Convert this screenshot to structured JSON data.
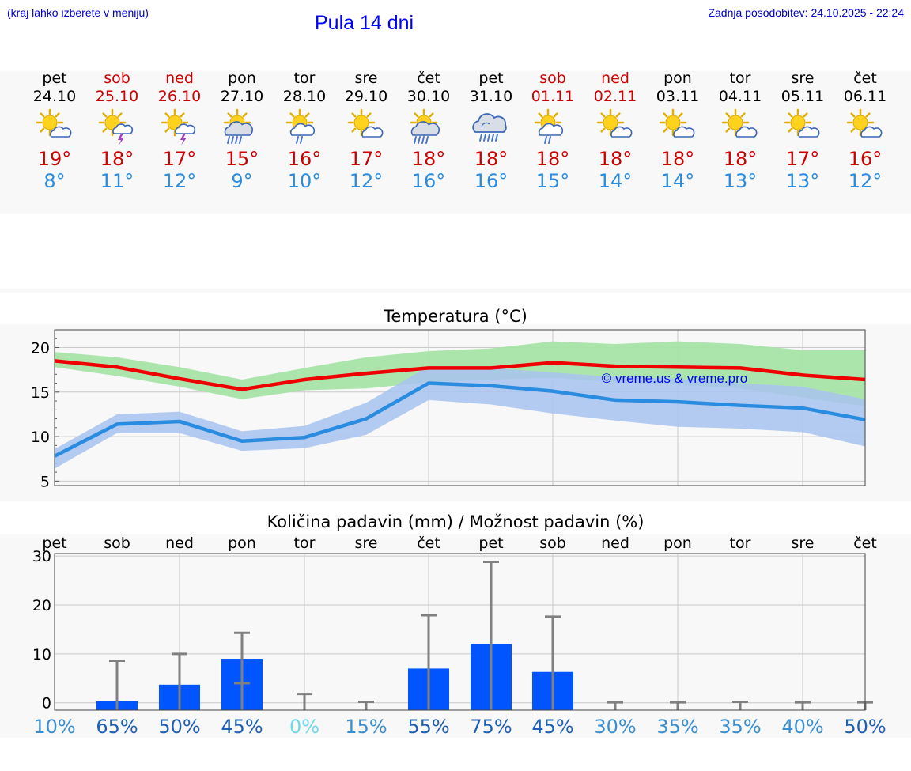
{
  "header": {
    "hint": "(kraj lahko izberete v meniju)",
    "title": "Pula 14 dni",
    "updated": "Zadnja posodobitev: 24.10.2025 - 22:24"
  },
  "days": [
    {
      "name": "pet",
      "date": "24.10",
      "weekend": false,
      "icon": "sun-cloud-icon",
      "tmax": "19°",
      "tmin": "8°"
    },
    {
      "name": "sob",
      "date": "25.10",
      "weekend": true,
      "icon": "sun-thunder-icon",
      "tmax": "18°",
      "tmin": "11°"
    },
    {
      "name": "ned",
      "date": "26.10",
      "weekend": true,
      "icon": "sun-thunder-icon",
      "tmax": "17°",
      "tmin": "12°"
    },
    {
      "name": "pon",
      "date": "27.10",
      "weekend": false,
      "icon": "sun-rain-heavy-icon",
      "tmax": "15°",
      "tmin": "9°"
    },
    {
      "name": "tor",
      "date": "28.10",
      "weekend": false,
      "icon": "sun-rain-icon",
      "tmax": "16°",
      "tmin": "10°"
    },
    {
      "name": "sre",
      "date": "29.10",
      "weekend": false,
      "icon": "sun-cloud-icon",
      "tmax": "17°",
      "tmin": "12°"
    },
    {
      "name": "čet",
      "date": "30.10",
      "weekend": false,
      "icon": "sun-rain-heavy-icon",
      "tmax": "18°",
      "tmin": "16°"
    },
    {
      "name": "pet",
      "date": "31.10",
      "weekend": false,
      "icon": "cloud-rain-icon",
      "tmax": "18°",
      "tmin": "16°"
    },
    {
      "name": "sob",
      "date": "01.11",
      "weekend": true,
      "icon": "sun-rain-icon",
      "tmax": "18°",
      "tmin": "15°"
    },
    {
      "name": "ned",
      "date": "02.11",
      "weekend": true,
      "icon": "sun-cloud-icon",
      "tmax": "18°",
      "tmin": "14°"
    },
    {
      "name": "pon",
      "date": "03.11",
      "weekend": false,
      "icon": "sun-cloud-icon",
      "tmax": "18°",
      "tmin": "14°"
    },
    {
      "name": "tor",
      "date": "04.11",
      "weekend": false,
      "icon": "sun-cloud-icon",
      "tmax": "18°",
      "tmin": "13°"
    },
    {
      "name": "sre",
      "date": "05.11",
      "weekend": false,
      "icon": "sun-cloud-icon",
      "tmax": "17°",
      "tmin": "13°"
    },
    {
      "name": "čet",
      "date": "06.11",
      "weekend": false,
      "icon": "sun-cloud-icon",
      "tmax": "16°",
      "tmin": "12°"
    }
  ],
  "colors": {
    "max_line": "#ee0000",
    "max_band": "#a8e4a8",
    "min_line": "#2a8ce0",
    "min_band": "#a8c3f0",
    "bar": "#0055ff",
    "whisker": "#808080",
    "prob_high": "#1f5fb4",
    "prob_mid": "#3a8fd0",
    "prob_low": "#6fd8e8"
  },
  "chart_data": [
    {
      "type": "line",
      "title": "Temperatura (°C)",
      "watermark": "© vreme.us & vreme.pro",
      "x": [
        "24.10",
        "25.10",
        "26.10",
        "27.10",
        "28.10",
        "29.10",
        "30.10",
        "31.10",
        "01.11",
        "02.11",
        "03.11",
        "04.11",
        "05.11",
        "06.11"
      ],
      "ylim": [
        4.5,
        22
      ],
      "yticks": [
        "5",
        "10",
        "15",
        "20"
      ],
      "yticks_values": [
        5,
        10,
        15,
        20
      ],
      "series": [
        {
          "name": "max",
          "values": [
            18.5,
            17.8,
            16.5,
            15.3,
            16.4,
            17.1,
            17.7,
            17.7,
            18.3,
            17.9,
            17.8,
            17.7,
            16.9,
            16.4
          ],
          "band_high": [
            19.5,
            18.9,
            17.8,
            16.4,
            17.7,
            18.9,
            19.6,
            19.9,
            20.7,
            20.4,
            20.7,
            20.4,
            19.7,
            19.7
          ],
          "band_low": [
            17.8,
            16.8,
            15.6,
            14.2,
            15.2,
            15.4,
            16.1,
            16.4,
            16.6,
            16.1,
            15.8,
            15.4,
            14.4,
            13.4
          ]
        },
        {
          "name": "min",
          "values": [
            7.8,
            11.4,
            11.7,
            9.5,
            9.9,
            12.0,
            16.0,
            15.7,
            15.1,
            14.1,
            13.9,
            13.5,
            13.2,
            11.9
          ],
          "band_high": [
            8.6,
            12.5,
            12.8,
            10.6,
            11.2,
            13.8,
            17.9,
            17.7,
            17.2,
            16.7,
            16.5,
            16.0,
            15.6,
            14.2
          ],
          "band_low": [
            6.4,
            10.4,
            10.4,
            8.4,
            8.7,
            10.2,
            14.1,
            13.6,
            12.6,
            11.8,
            11.1,
            10.9,
            10.5,
            8.9
          ]
        }
      ]
    },
    {
      "type": "bar",
      "title": "Količina padavin (mm) / Možnost padavin (%)",
      "categories": [
        "pet",
        "sob",
        "ned",
        "pon",
        "tor",
        "sre",
        "čet",
        "pet",
        "sob",
        "ned",
        "pon",
        "tor",
        "sre",
        "čet"
      ],
      "ylim": [
        -1.5,
        30.5
      ],
      "yticks": [
        "0",
        "10",
        "20",
        "30"
      ],
      "yticks_values": [
        0,
        10,
        20,
        30
      ],
      "values": [
        0,
        0.3,
        3.7,
        9.0,
        0,
        0,
        7.0,
        12.0,
        6.3,
        0,
        0,
        0,
        0,
        0
      ],
      "err_high": [
        0,
        8.6,
        10.0,
        14.3,
        1.8,
        0.2,
        17.9,
        28.8,
        17.6,
        0.1,
        0.1,
        0.2,
        0.1,
        0.1
      ],
      "err_low": [
        0,
        0,
        0,
        4.0,
        0,
        0,
        0,
        0,
        0,
        0,
        0,
        0,
        0,
        0
      ],
      "probabilities": [
        "10%",
        "65%",
        "50%",
        "45%",
        "0%",
        "15%",
        "55%",
        "75%",
        "45%",
        "30%",
        "35%",
        "35%",
        "40%",
        "50%"
      ],
      "probability_values": [
        10,
        65,
        50,
        45,
        0,
        15,
        55,
        75,
        45,
        30,
        35,
        35,
        40,
        50
      ]
    }
  ]
}
